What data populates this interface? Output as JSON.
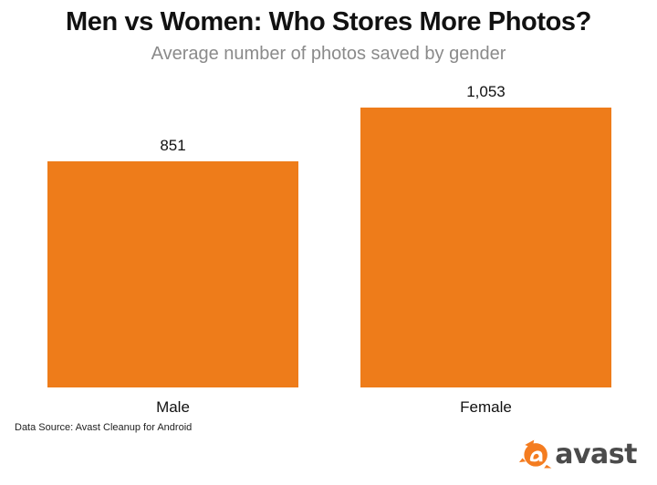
{
  "title": "Men vs Women: Who Stores More Photos?",
  "subtitle": "Average number of photos saved by gender",
  "source": "Data Source: Avast Cleanup for Android",
  "logo": {
    "text": "avast",
    "icon": "avast-logo-icon",
    "color": "#F47C20"
  },
  "colors": {
    "bar": "#EE7C1A"
  },
  "chart_data": {
    "type": "bar",
    "categories": [
      "Male",
      "Female"
    ],
    "values": [
      851,
      1053
    ],
    "data_labels": [
      "851",
      "1,053"
    ],
    "title": "Men vs Women: Who Stores More Photos?",
    "subtitle": "Average number of photos saved by gender",
    "xlabel": "",
    "ylabel": "",
    "ylim": [
      0,
      1053
    ],
    "grid": false,
    "legend": "none"
  }
}
